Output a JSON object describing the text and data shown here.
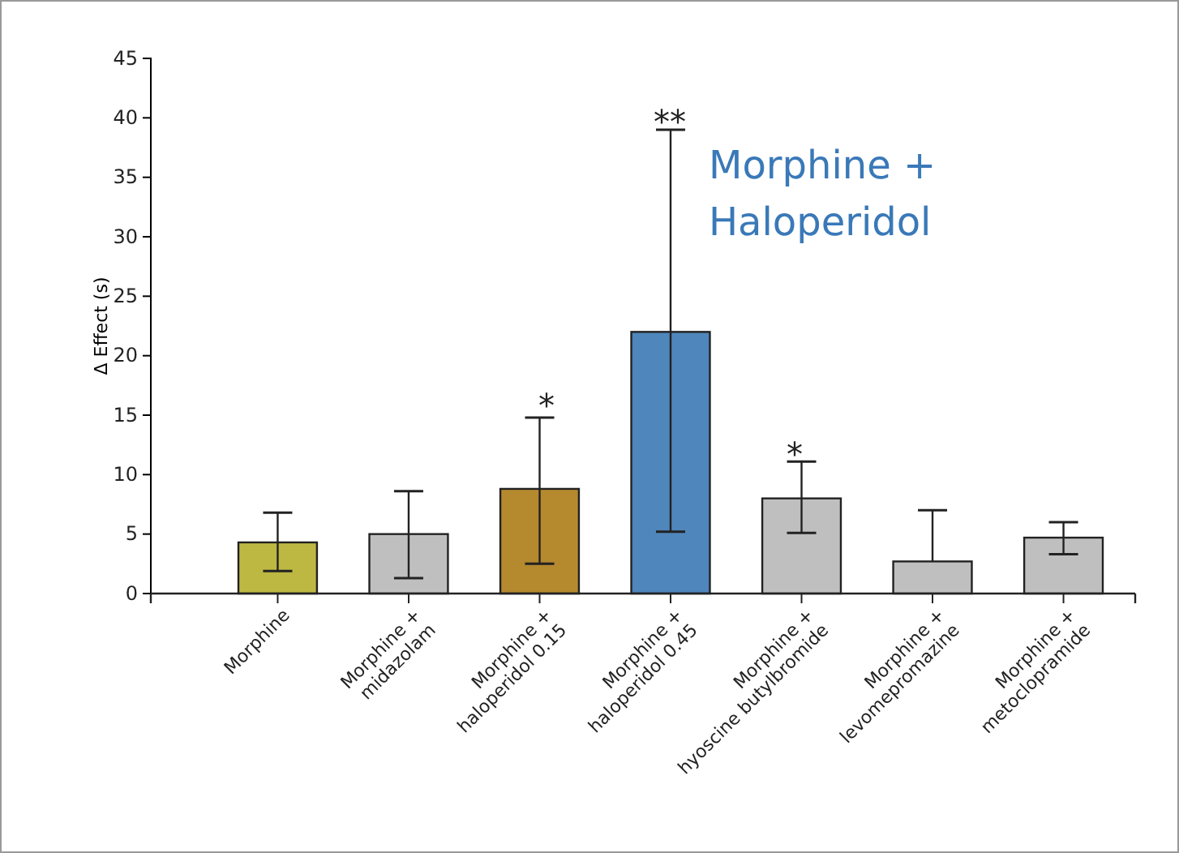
{
  "chart_data": {
    "type": "bar",
    "ylabel": "Δ  Effect (s)",
    "categories": [
      "Morphine",
      "Morphine +\nmidazolam",
      "Morphine +\nhaloperidol 0.15",
      "Morphine +\nhaloperidol 0.45",
      "Morphine +\nhyoscine butylbromide",
      "Morphine +\nlevomepromazine",
      "Morphine +\nmetoclopramide"
    ],
    "values": [
      4.3,
      5.0,
      8.8,
      22,
      8.0,
      2.7,
      4.7
    ],
    "colors": [
      "#bdb842",
      "#bfbfbf",
      "#b5892e",
      "#4f86bb",
      "#bfbfbf",
      "#bfbfbf",
      "#bfbfbf"
    ],
    "errors": [
      [
        1.9,
        6.8
      ],
      [
        1.3,
        8.6
      ],
      [
        2.5,
        14.8
      ],
      [
        5.2,
        39
      ],
      [
        5.1,
        11.1
      ],
      [
        2.7,
        7.0
      ],
      [
        3.3,
        6.0
      ]
    ],
    "ylim": [
      0,
      45
    ],
    "yticks": [
      0,
      5,
      10,
      15,
      20,
      25,
      30,
      35,
      40,
      45
    ],
    "grid": false,
    "annotations": [
      "*",
      "**",
      "*",
      "Morphine +\nHaloperidol"
    ]
  }
}
